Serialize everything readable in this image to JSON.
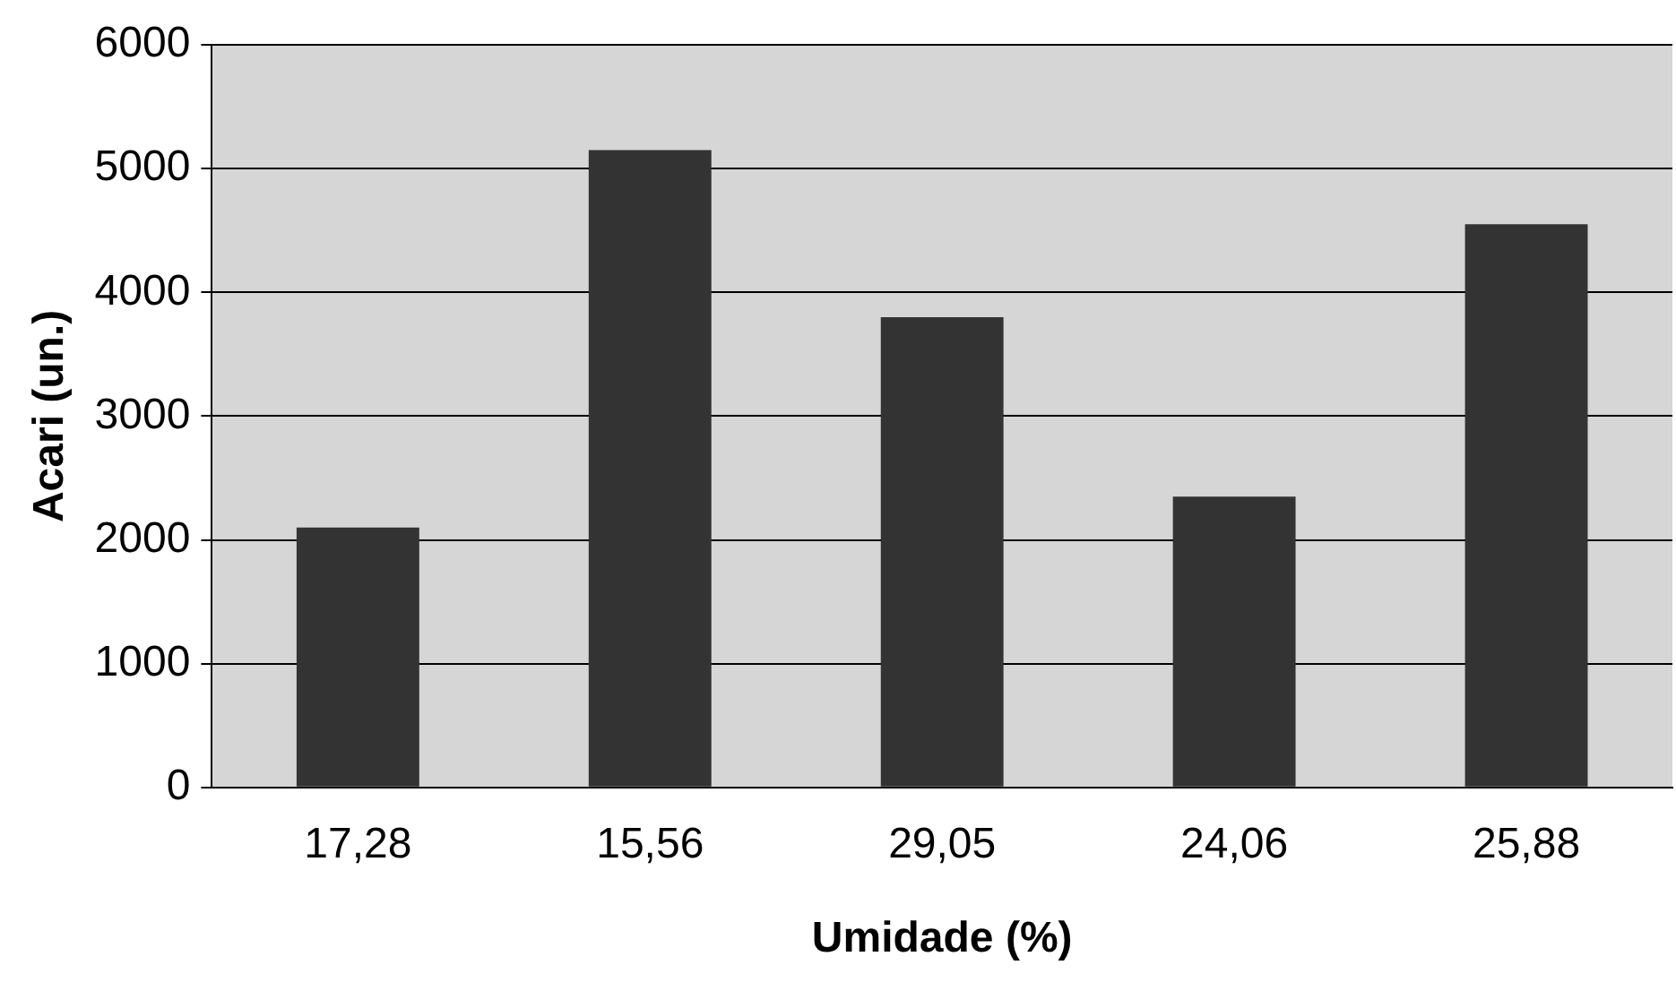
{
  "chart_data": {
    "type": "bar",
    "xlabel": "Umidade (%)",
    "ylabel": "Acari (un.)",
    "categories": [
      "17,28",
      "15,56",
      "29,05",
      "24,06",
      "25,88"
    ],
    "values": [
      2100,
      5150,
      3800,
      2350,
      4550
    ],
    "color": "#333333",
    "ylim": [
      0,
      6000
    ],
    "yticks": [
      0,
      1000,
      2000,
      3000,
      4000,
      5000,
      6000
    ],
    "grid": "y"
  }
}
